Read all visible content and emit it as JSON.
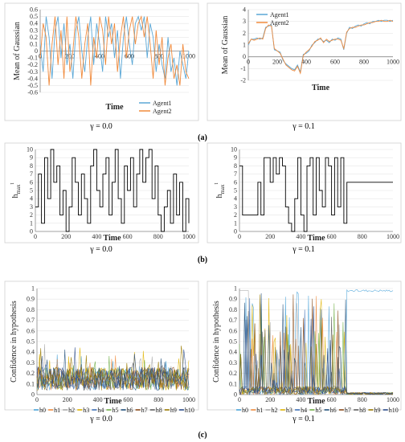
{
  "captions": [
    "(a)",
    "(b)",
    "(c)"
  ],
  "chart_data": [
    {
      "type": "line",
      "gamma_label": "γ = 0.0",
      "xlabel": "Time",
      "ylabel": "Mean of Gaussian",
      "xlim": [
        0,
        1000
      ],
      "ylim": [
        -0.6,
        0.6
      ],
      "xticks": [
        "0",
        "200",
        "400",
        "600",
        "800",
        "1000"
      ],
      "yticks": [
        "0.6",
        "0.5",
        "0.4",
        "0.3",
        "0.2",
        "0.1",
        "0",
        "-0.1",
        "-0.2",
        "-0.3",
        "-0.4",
        "-0.5",
        "-0.6"
      ],
      "legend_position": "bottom-right",
      "series": [
        {
          "name": "Agent1",
          "color": "#5aa7d6",
          "x": [
            0,
            20,
            40,
            60,
            80,
            100,
            120,
            140,
            160,
            180,
            200,
            220,
            240,
            260,
            280,
            300,
            320,
            340,
            360,
            380,
            400,
            420,
            440,
            460,
            480,
            500,
            520,
            540,
            560,
            580,
            600,
            620,
            640,
            660,
            680,
            700,
            720,
            740,
            760,
            780,
            800,
            820,
            840,
            860,
            880,
            900,
            920,
            940,
            960,
            980,
            1000
          ],
          "values": [
            0.1,
            -0.3,
            0.5,
            0.2,
            -0.4,
            0.3,
            0.5,
            -0.1,
            0.4,
            -0.2,
            0.1,
            -0.4,
            0.3,
            0.5,
            0.0,
            -0.3,
            0.2,
            0.5,
            -0.2,
            0.4,
            0.1,
            -0.3,
            0.5,
            0.2,
            0.4,
            -0.1,
            0.3,
            -0.4,
            0.2,
            0.5,
            0.1,
            -0.2,
            0.4,
            0.5,
            0.3,
            0.5,
            -0.1,
            0.4,
            0.2,
            -0.3,
            0.1,
            -0.2,
            -0.4,
            0.2,
            -0.3,
            -0.1,
            -0.5,
            0.0,
            -0.2,
            -0.4,
            0.0
          ]
        },
        {
          "name": "Agent2",
          "color": "#f08a3c",
          "x": [
            0,
            20,
            40,
            60,
            80,
            100,
            120,
            140,
            160,
            180,
            200,
            220,
            240,
            260,
            280,
            300,
            320,
            340,
            360,
            380,
            400,
            420,
            440,
            460,
            480,
            500,
            520,
            540,
            560,
            580,
            600,
            620,
            640,
            660,
            680,
            700,
            720,
            740,
            760,
            780,
            800,
            820,
            840,
            860,
            880,
            900,
            920,
            940,
            960,
            980,
            1000
          ],
          "values": [
            -0.1,
            0.4,
            0.2,
            -0.5,
            0.1,
            0.5,
            -0.2,
            0.3,
            -0.4,
            0.5,
            -0.3,
            0.0,
            0.5,
            0.2,
            -0.4,
            0.1,
            0.4,
            -0.5,
            0.2,
            -0.1,
            0.5,
            0.3,
            -0.2,
            0.5,
            0.1,
            0.4,
            -0.3,
            0.2,
            0.5,
            -0.1,
            0.3,
            0.5,
            0.1,
            0.4,
            0.5,
            0.2,
            0.5,
            0.1,
            -0.4,
            0.3,
            -0.2,
            0.2,
            -0.5,
            -0.1,
            0.1,
            -0.4,
            -0.2,
            -0.5,
            0.1,
            -0.3,
            -0.4
          ]
        }
      ]
    },
    {
      "type": "line",
      "gamma_label": "γ = 0.1",
      "xlabel": "Time",
      "ylabel": "Mean of Gaussian",
      "xlim": [
        0,
        1000
      ],
      "ylim": [
        -2,
        4
      ],
      "xticks": [
        "0",
        "200",
        "400",
        "600",
        "800",
        "1000"
      ],
      "yticks": [
        "4",
        "3",
        "2",
        "1",
        "0",
        "-1",
        "-2"
      ],
      "legend_position": "top-left",
      "series": [
        {
          "name": "Agent1",
          "color": "#5aa7d6",
          "x": [
            0,
            20,
            40,
            60,
            80,
            100,
            120,
            140,
            160,
            180,
            200,
            220,
            240,
            260,
            280,
            300,
            320,
            340,
            360,
            380,
            400,
            420,
            440,
            460,
            480,
            500,
            520,
            540,
            560,
            580,
            600,
            620,
            640,
            660,
            680,
            700,
            720,
            740,
            760,
            780,
            800,
            820,
            840,
            860,
            880,
            900,
            920,
            940,
            960,
            980,
            1000
          ],
          "values": [
            1.0,
            1.5,
            1.5,
            1.6,
            1.5,
            1.6,
            2.5,
            2.6,
            2.7,
            0.6,
            0.5,
            0.4,
            -0.3,
            -0.6,
            -0.8,
            -1.0,
            -1.1,
            -0.7,
            -1.3,
            0.2,
            0.3,
            0.5,
            1.0,
            1.2,
            1.5,
            1.5,
            1.3,
            1.4,
            1.2,
            1.5,
            1.4,
            1.6,
            1.5,
            0.6,
            2.0,
            2.5,
            2.4,
            2.6,
            2.7,
            2.6,
            2.8,
            2.9,
            2.8,
            3.0,
            3.0,
            3.1,
            3.0,
            3.1,
            3.1,
            3.0,
            3.1
          ]
        },
        {
          "name": "Agent2",
          "color": "#f08a3c",
          "x": [
            0,
            20,
            40,
            60,
            80,
            100,
            120,
            140,
            160,
            180,
            200,
            220,
            240,
            260,
            280,
            300,
            320,
            340,
            360,
            380,
            400,
            420,
            440,
            460,
            480,
            500,
            520,
            540,
            560,
            580,
            600,
            620,
            640,
            660,
            680,
            700,
            720,
            740,
            760,
            780,
            800,
            820,
            840,
            860,
            880,
            900,
            920,
            940,
            960,
            980,
            1000
          ],
          "values": [
            1.1,
            1.5,
            1.4,
            1.5,
            1.6,
            1.5,
            2.4,
            2.7,
            2.6,
            0.7,
            0.5,
            0.3,
            -0.2,
            -0.7,
            -0.9,
            -1.1,
            -1.2,
            -0.8,
            -1.4,
            0.1,
            0.4,
            0.6,
            0.9,
            1.3,
            1.4,
            1.6,
            1.2,
            1.5,
            1.3,
            1.4,
            1.5,
            1.5,
            1.4,
            0.7,
            2.1,
            2.4,
            2.5,
            2.5,
            2.6,
            2.7,
            2.7,
            2.8,
            2.9,
            2.9,
            3.0,
            3.0,
            3.1,
            3.0,
            3.0,
            3.1,
            3.0
          ]
        }
      ]
    },
    {
      "type": "line",
      "gamma_label": "γ = 0.0",
      "xlabel": "Time",
      "ylabel": "h_max^t",
      "ylabel_main": "h",
      "ylabel_sub": "max",
      "ylabel_sup": "t",
      "xlim": [
        0,
        1000
      ],
      "ylim": [
        0,
        10
      ],
      "xticks": [
        "0",
        "200",
        "400",
        "600",
        "800",
        "1000"
      ],
      "yticks": [
        "10",
        "9",
        "8",
        "7",
        "6",
        "5",
        "4",
        "3",
        "2",
        "1",
        "0"
      ],
      "series": [
        {
          "color": "#000000",
          "x": [
            0,
            20,
            40,
            60,
            80,
            100,
            120,
            140,
            160,
            180,
            200,
            220,
            240,
            260,
            280,
            300,
            320,
            340,
            360,
            380,
            400,
            420,
            440,
            460,
            480,
            500,
            520,
            540,
            560,
            580,
            600,
            620,
            640,
            660,
            680,
            700,
            720,
            740,
            760,
            780,
            800,
            820,
            840,
            860,
            880,
            900,
            920,
            940,
            960,
            980,
            1000
          ],
          "values": [
            3,
            7,
            1,
            9,
            4,
            10,
            6,
            8,
            2,
            5,
            0,
            3,
            9,
            6,
            2,
            7,
            4,
            1,
            8,
            10,
            5,
            3,
            7,
            9,
            2,
            6,
            10,
            4,
            1,
            8,
            5,
            9,
            3,
            7,
            10,
            6,
            9,
            10,
            4,
            8,
            2,
            0,
            3,
            5,
            1,
            7,
            2,
            6,
            0,
            4,
            1
          ]
        }
      ]
    },
    {
      "type": "line",
      "gamma_label": "γ = 0.1",
      "xlabel": "Time",
      "ylabel": "h_max^t",
      "ylabel_main": "h",
      "ylabel_sub": "max",
      "ylabel_sup": "t",
      "xlim": [
        0,
        1000
      ],
      "ylim": [
        0,
        10
      ],
      "xticks": [
        "0",
        "200",
        "400",
        "600",
        "800",
        "1000"
      ],
      "yticks": [
        "10",
        "9",
        "8",
        "7",
        "6",
        "5",
        "4",
        "3",
        "2",
        "1",
        "0"
      ],
      "series": [
        {
          "color": "#000000",
          "x": [
            0,
            20,
            40,
            60,
            80,
            100,
            120,
            140,
            160,
            180,
            200,
            220,
            240,
            260,
            280,
            300,
            320,
            340,
            360,
            380,
            400,
            420,
            440,
            460,
            480,
            500,
            520,
            540,
            560,
            580,
            600,
            620,
            640,
            660,
            680,
            700,
            720,
            740,
            760,
            780,
            800,
            820,
            840,
            860,
            880,
            900,
            920,
            940,
            960,
            980,
            1000
          ],
          "values": [
            8,
            2,
            2,
            2,
            2,
            2,
            6,
            2,
            9,
            9,
            6,
            9,
            7,
            9,
            8,
            3,
            1,
            0,
            4,
            9,
            2,
            0,
            8,
            9,
            2,
            9,
            5,
            3,
            9,
            8,
            2,
            9,
            3,
            9,
            1,
            6,
            6,
            6,
            6,
            6,
            6,
            6,
            6,
            6,
            6,
            6,
            6,
            6,
            6,
            6,
            6
          ]
        }
      ]
    },
    {
      "type": "line",
      "gamma_label": "γ = 0.0",
      "xlabel": "Time",
      "ylabel": "Confidence in hypothesis",
      "xlim": [
        0,
        1000
      ],
      "ylim": [
        0,
        1
      ],
      "xticks": [
        "0",
        "200",
        "400",
        "600",
        "800",
        "1000"
      ],
      "yticks": [
        "1",
        "0.9",
        "0.8",
        "0.7",
        "0.6",
        "0.5",
        "0.4",
        "0.3",
        "0.2",
        "0.1",
        "0"
      ],
      "legend_position": "bottom",
      "series": [
        {
          "name": "h0",
          "color": "#4aa3d8"
        },
        {
          "name": "h1",
          "color": "#f08a3c"
        },
        {
          "name": "h2",
          "color": "#a9a9a9"
        },
        {
          "name": "h3",
          "color": "#e0b400"
        },
        {
          "name": "h4",
          "color": "#3d6fb6"
        },
        {
          "name": "h5",
          "color": "#6fae45"
        },
        {
          "name": "h6",
          "color": "#1f4e79"
        },
        {
          "name": "h7",
          "color": "#8a4b1a"
        },
        {
          "name": "h8",
          "color": "#5f5f5f"
        },
        {
          "name": "h9",
          "color": "#9a7a00"
        },
        {
          "name": "h10",
          "color": "#2c4d8a"
        }
      ]
    },
    {
      "type": "line",
      "gamma_label": "γ = 0.1",
      "xlabel": "Time",
      "ylabel": "Confidence in hypothesis",
      "xlim": [
        0,
        1000
      ],
      "ylim": [
        0,
        1
      ],
      "xticks": [
        "0",
        "200",
        "400",
        "600",
        "800",
        "1000"
      ],
      "yticks": [
        "1",
        "0.9",
        "0.8",
        "0.7",
        "0.6",
        "0.5",
        "0.4",
        "0.3",
        "0.2",
        "0.1",
        "0"
      ],
      "legend_position": "bottom",
      "series": [
        {
          "name": "h0",
          "color": "#4aa3d8"
        },
        {
          "name": "h1",
          "color": "#f08a3c"
        },
        {
          "name": "h2",
          "color": "#a9a9a9"
        },
        {
          "name": "h3",
          "color": "#e0b400"
        },
        {
          "name": "h4",
          "color": "#3d6fb6"
        },
        {
          "name": "h5",
          "color": "#6fae45"
        },
        {
          "name": "h6",
          "color": "#1f4e79"
        },
        {
          "name": "h7",
          "color": "#8a4b1a"
        },
        {
          "name": "h8",
          "color": "#5f5f5f"
        },
        {
          "name": "h9",
          "color": "#9a7a00"
        },
        {
          "name": "h10",
          "color": "#2c4d8a"
        }
      ]
    }
  ]
}
